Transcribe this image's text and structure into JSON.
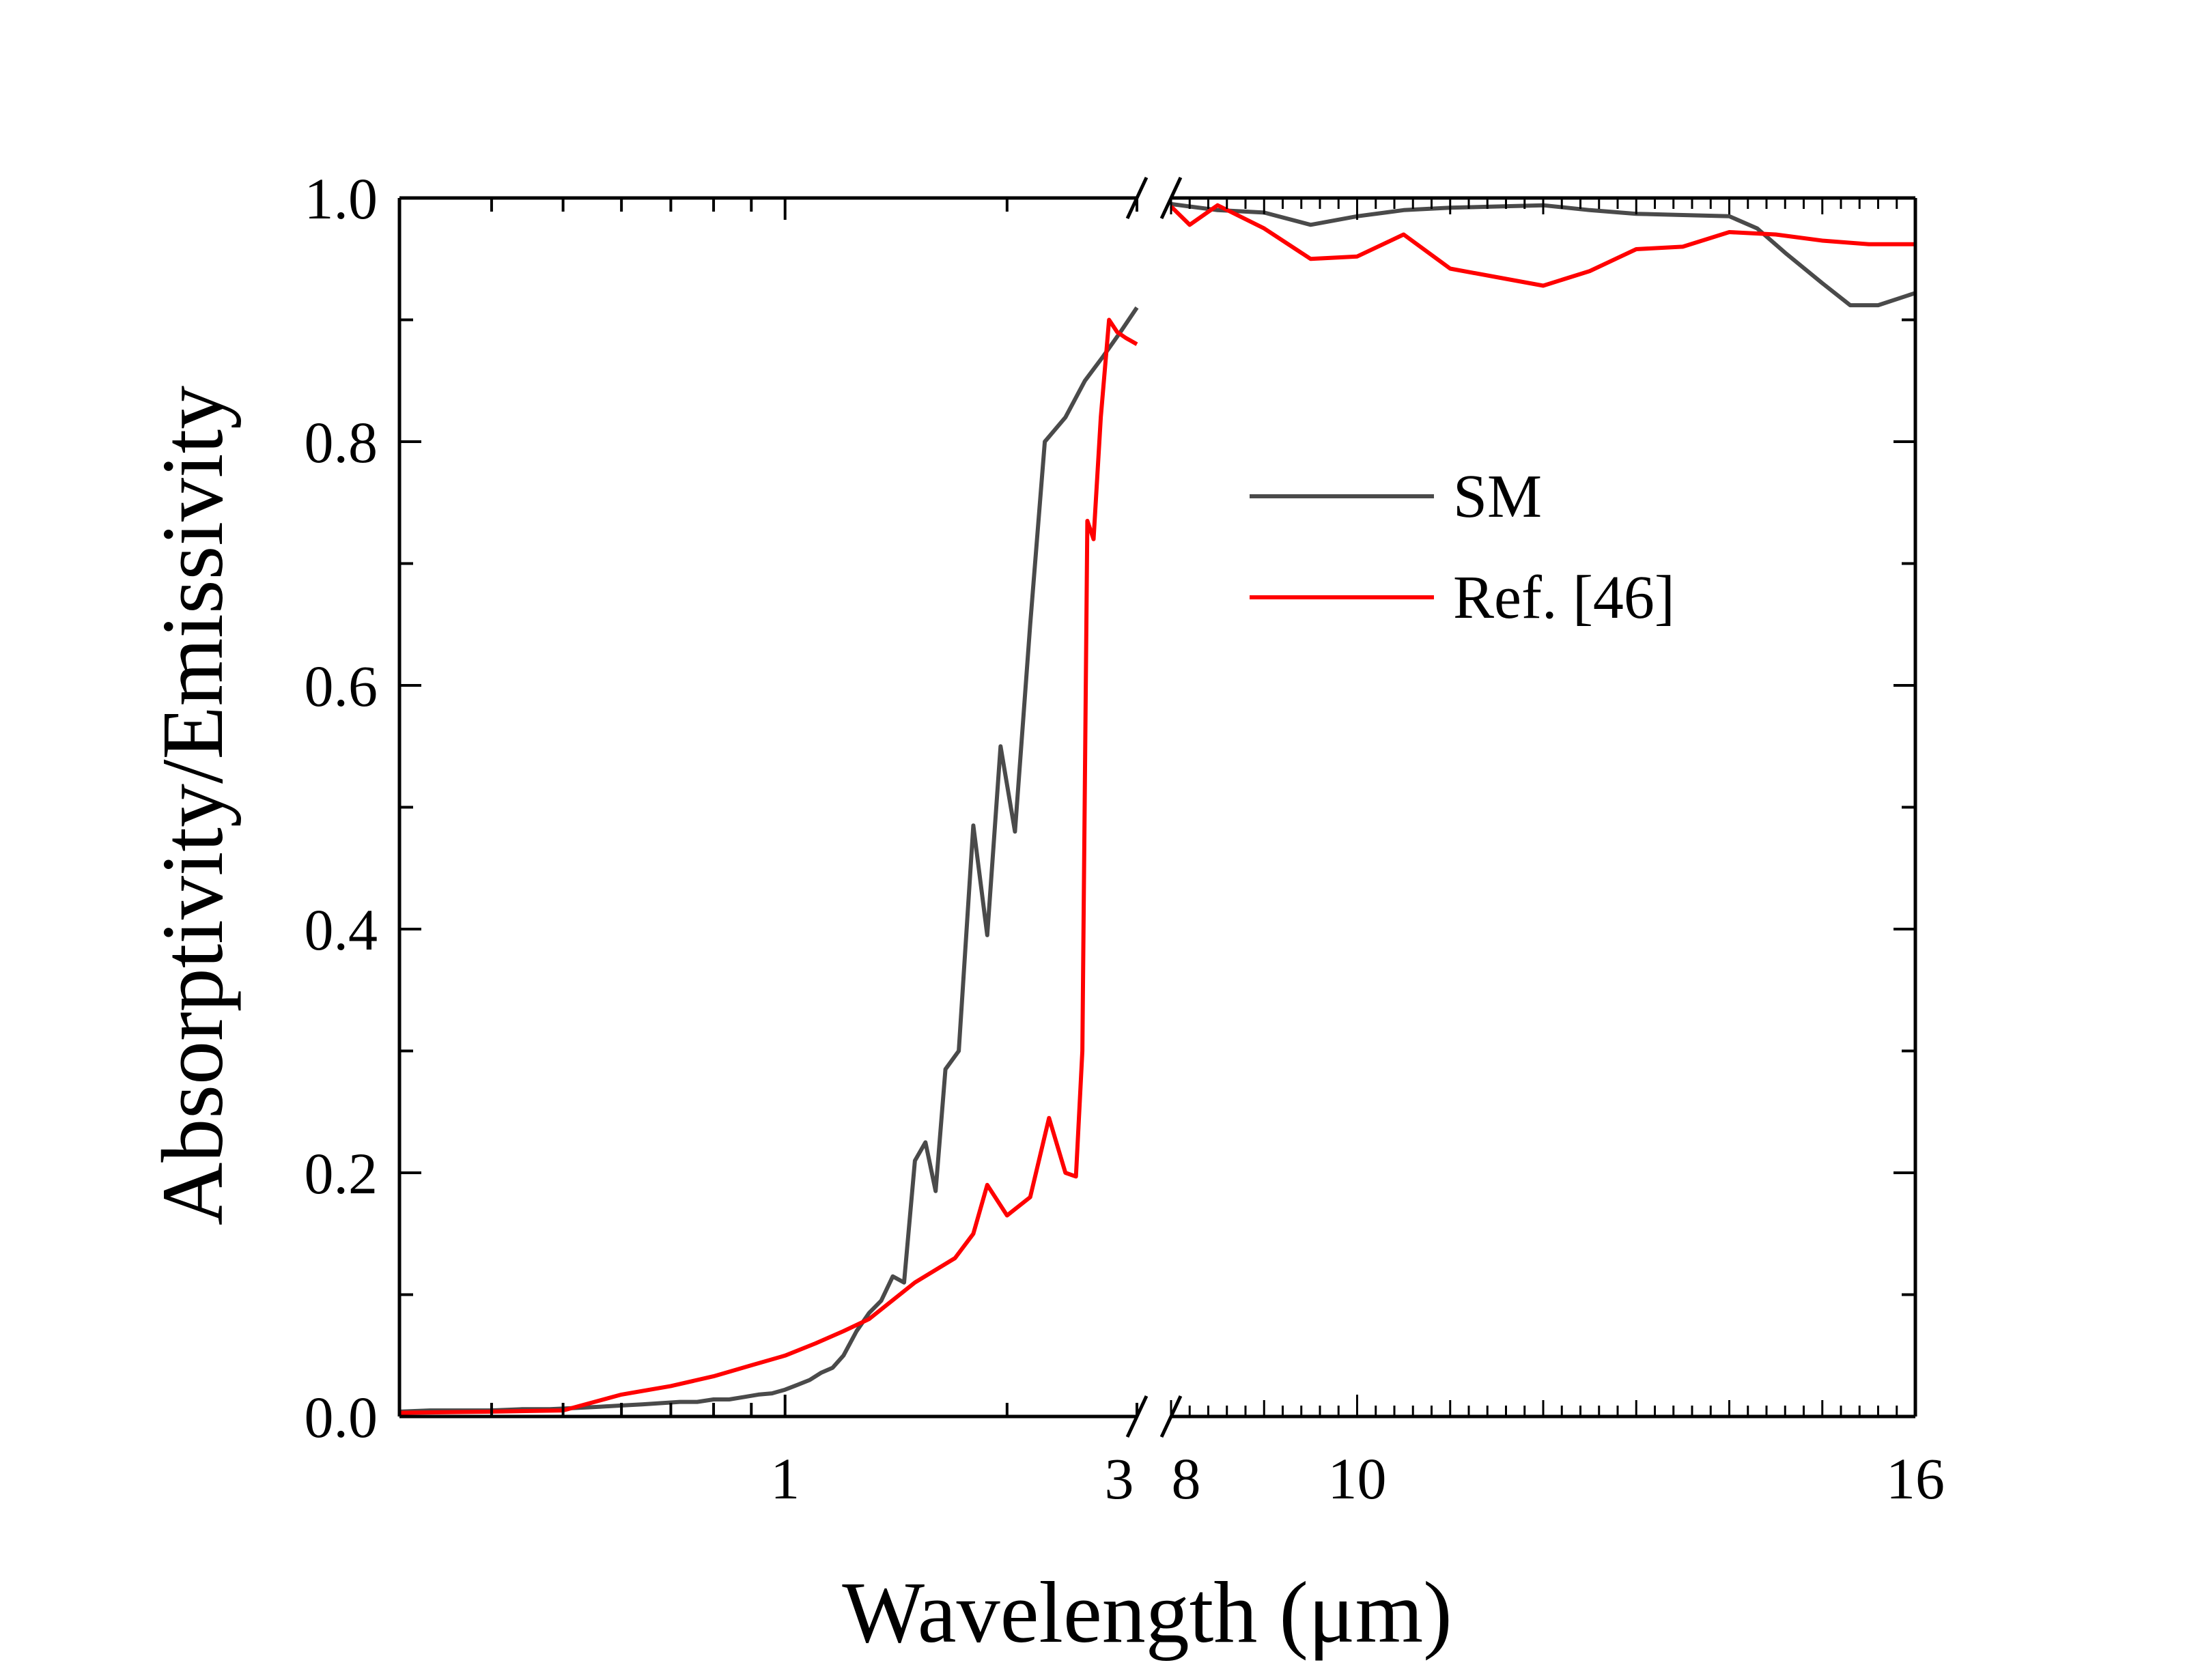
{
  "chart_data": {
    "type": "line",
    "xlabel": "Wavelength (μm)",
    "ylabel": "Absorptivity/Emissivity",
    "ylim": [
      0,
      1.0
    ],
    "y_ticks": [
      "0.0",
      "0.2",
      "0.4",
      "0.6",
      "0.8",
      "1.0"
    ],
    "y_tick_values": [
      0,
      0.2,
      0.4,
      0.6,
      0.8,
      1.0
    ],
    "grid": false,
    "legend_position": "upper-right",
    "x_axis": {
      "broken": true,
      "segments": [
        {
          "range": [
            0.3,
            3
          ],
          "scale": "log",
          "ticks": [
            {
              "value": 1,
              "label": "1"
            }
          ],
          "end_label": "3"
        },
        {
          "range": [
            8,
            16
          ],
          "scale": "linear",
          "ticks": [
            {
              "value": 10,
              "label": "10"
            }
          ],
          "start_label": "8",
          "end_label": "16"
        }
      ]
    },
    "series": [
      {
        "name": "SM",
        "color": "#4a4a4a",
        "segment1": {
          "x": [
            0.3,
            0.33,
            0.36,
            0.4,
            0.44,
            0.48,
            0.52,
            0.56,
            0.6,
            0.64,
            0.68,
            0.72,
            0.76,
            0.8,
            0.84,
            0.88,
            0.92,
            0.96,
            1.0,
            1.04,
            1.08,
            1.12,
            1.16,
            1.2,
            1.25,
            1.3,
            1.35,
            1.4,
            1.45,
            1.5,
            1.55,
            1.6,
            1.65,
            1.72,
            1.8,
            1.88,
            1.96,
            2.05,
            2.15,
            2.25,
            2.4,
            2.55,
            2.7,
            2.85,
            3.0
          ],
          "y": [
            0.004,
            0.005,
            0.005,
            0.005,
            0.006,
            0.006,
            0.007,
            0.008,
            0.009,
            0.01,
            0.011,
            0.012,
            0.012,
            0.014,
            0.014,
            0.016,
            0.018,
            0.019,
            0.022,
            0.026,
            0.03,
            0.036,
            0.04,
            0.05,
            0.07,
            0.085,
            0.095,
            0.115,
            0.11,
            0.21,
            0.225,
            0.185,
            0.285,
            0.3,
            0.485,
            0.395,
            0.55,
            0.48,
            0.65,
            0.8,
            0.82,
            0.85,
            0.87,
            0.89,
            0.91
          ]
        },
        "segment2": {
          "x": [
            8.0,
            8.2,
            8.5,
            9.0,
            9.5,
            10.0,
            10.5,
            11.0,
            11.5,
            12.0,
            12.5,
            13.0,
            13.5,
            14.0,
            14.3,
            14.6,
            15.0,
            15.3,
            15.6,
            16.0
          ],
          "y": [
            0.995,
            0.993,
            0.99,
            0.988,
            0.978,
            0.985,
            0.99,
            0.992,
            0.993,
            0.994,
            0.99,
            0.987,
            0.986,
            0.985,
            0.975,
            0.955,
            0.93,
            0.912,
            0.912,
            0.922
          ]
        }
      },
      {
        "name": "Ref. [46]",
        "color": "#ff0000",
        "segment1": {
          "x": [
            0.3,
            0.4,
            0.5,
            0.6,
            0.7,
            0.8,
            0.9,
            1.0,
            1.1,
            1.2,
            1.3,
            1.5,
            1.7,
            1.8,
            1.88,
            2.0,
            2.15,
            2.28,
            2.4,
            2.48,
            2.53,
            2.57,
            2.62,
            2.68,
            2.75,
            2.82,
            2.9,
            3.0
          ],
          "y": [
            0.003,
            0.004,
            0.005,
            0.018,
            0.025,
            0.033,
            0.042,
            0.05,
            0.06,
            0.07,
            0.08,
            0.11,
            0.13,
            0.15,
            0.19,
            0.165,
            0.18,
            0.245,
            0.2,
            0.197,
            0.3,
            0.735,
            0.72,
            0.82,
            0.9,
            0.89,
            0.885,
            0.88
          ]
        },
        "segment2": {
          "x": [
            8.0,
            8.2,
            8.5,
            9.0,
            9.5,
            10.0,
            10.5,
            11.0,
            11.5,
            12.0,
            12.5,
            13.0,
            13.5,
            14.0,
            14.5,
            15.0,
            15.5,
            16.0
          ],
          "y": [
            0.993,
            0.978,
            0.994,
            0.975,
            0.95,
            0.952,
            0.97,
            0.942,
            0.935,
            0.928,
            0.94,
            0.958,
            0.96,
            0.972,
            0.97,
            0.965,
            0.962,
            0.962
          ]
        }
      }
    ]
  }
}
